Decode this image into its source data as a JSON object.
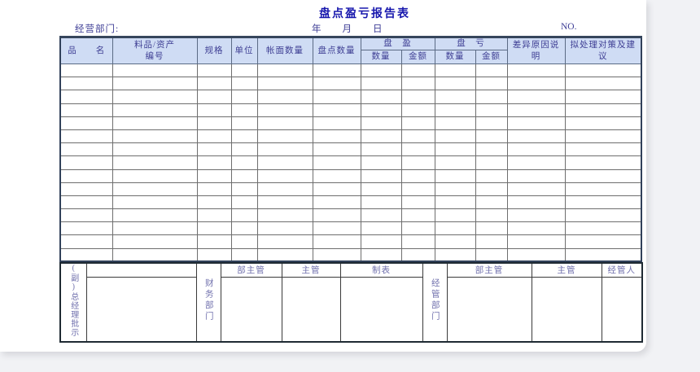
{
  "form": {
    "title": "盘点盈亏报告表",
    "dept_label": "经营部门:",
    "date_label": "年　　月　　日",
    "no_label": "NO.",
    "colors": {
      "title_accent": "#1717ad",
      "header_bg": "#cfdcf4",
      "header_text": "#3f3f94",
      "signature_text": "#7070ad",
      "border_dark": "#31415a",
      "page_bg": "#ffffff",
      "canvas_bg": "#f1f2f5"
    }
  },
  "table": {
    "body_row_count": 15,
    "column_count": 12,
    "headers": {
      "item_name": "品　　名",
      "asset_no": "料品/资产\n编号",
      "spec": "规格",
      "unit": "单位",
      "book_qty": "帐面数量",
      "count_qty": "盘点数量",
      "overage": "盘　盈",
      "shortage": "盘　亏",
      "qty": "数量",
      "amount": "金额",
      "diff_reason": "差异原因说明",
      "suggestion": "拟处理对策及建议"
    }
  },
  "footer": {
    "gm_approval": "(副)总经理批示",
    "finance_dept": "财务部门",
    "mgmt_dept": "经管部门",
    "dept_head": "部主管",
    "supervisor": "主管",
    "preparer": "制表",
    "handler": "经管人"
  }
}
